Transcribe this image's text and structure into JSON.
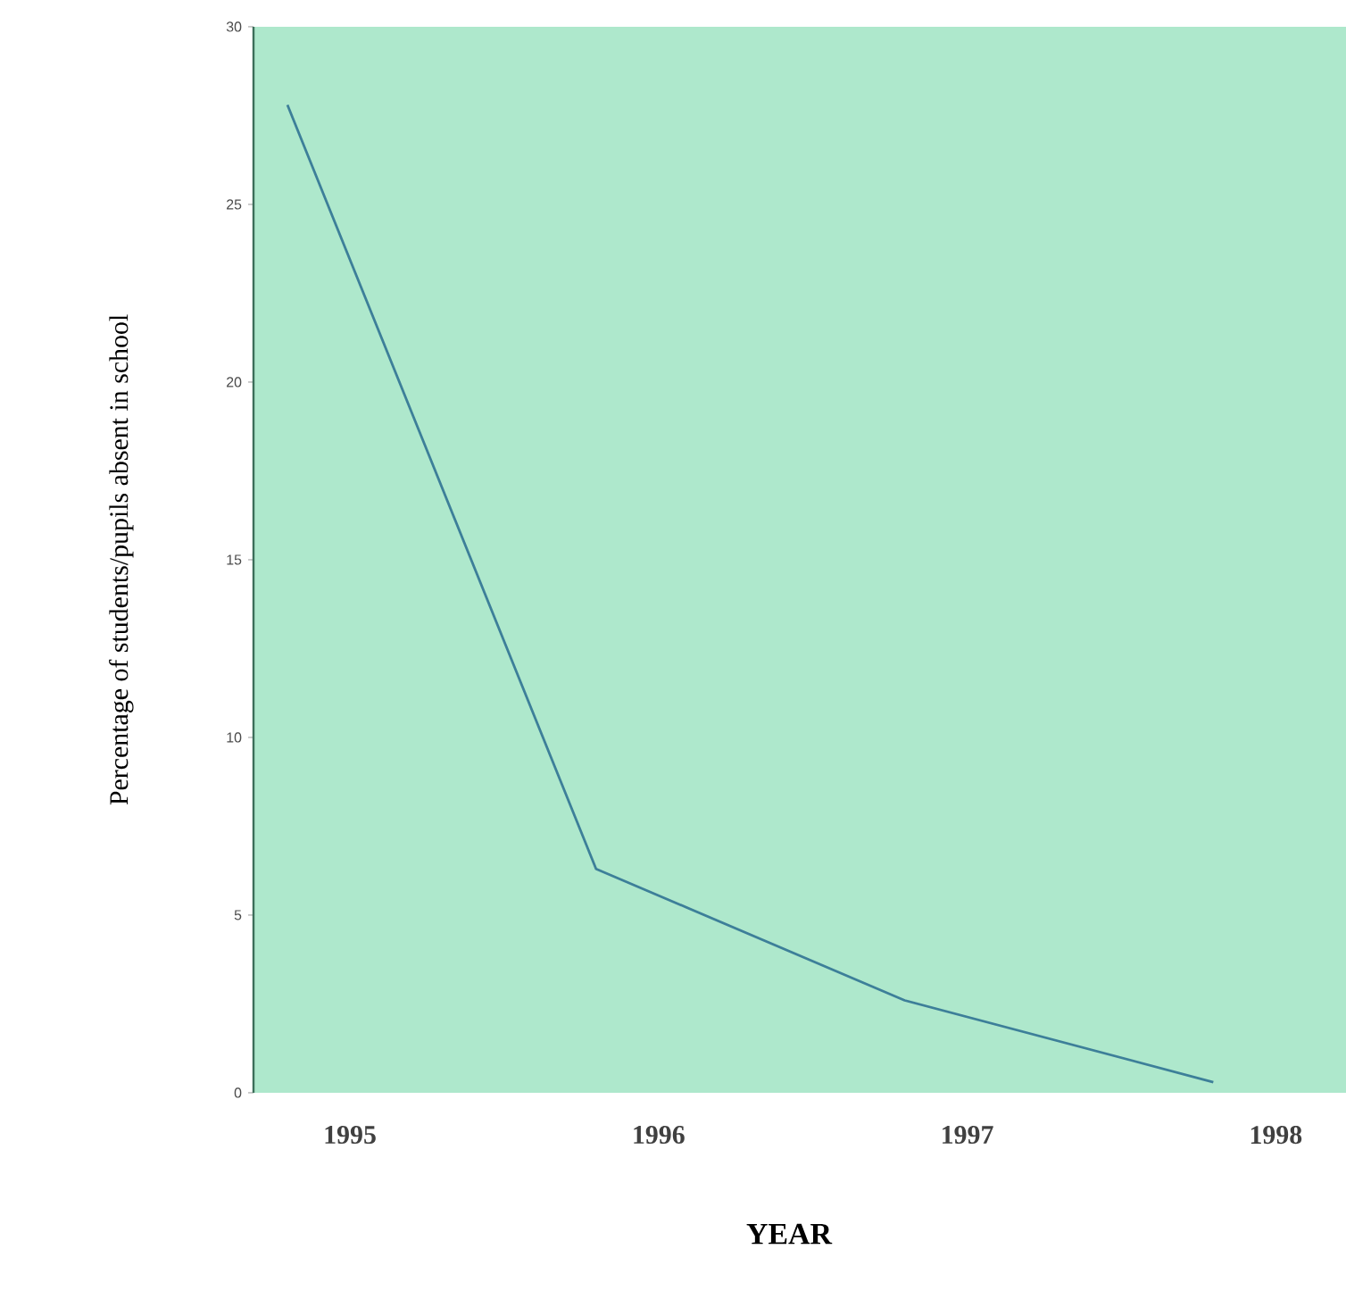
{
  "chart_data": {
    "type": "line",
    "xlabel": "YEAR",
    "ylabel": "Percentage of students/pupils absent in school",
    "categories": [
      "1995",
      "1996",
      "1997",
      "1998"
    ],
    "series": [
      {
        "color": "#3d7f99",
        "values": [
          27.8,
          6.3,
          2.6,
          0.3
        ]
      }
    ],
    "ylim": [
      0,
      30
    ],
    "yticks": [
      0,
      5,
      10,
      15,
      20,
      25,
      30
    ],
    "grid": false,
    "legend": false,
    "marker": "none",
    "line_style": "solid"
  }
}
